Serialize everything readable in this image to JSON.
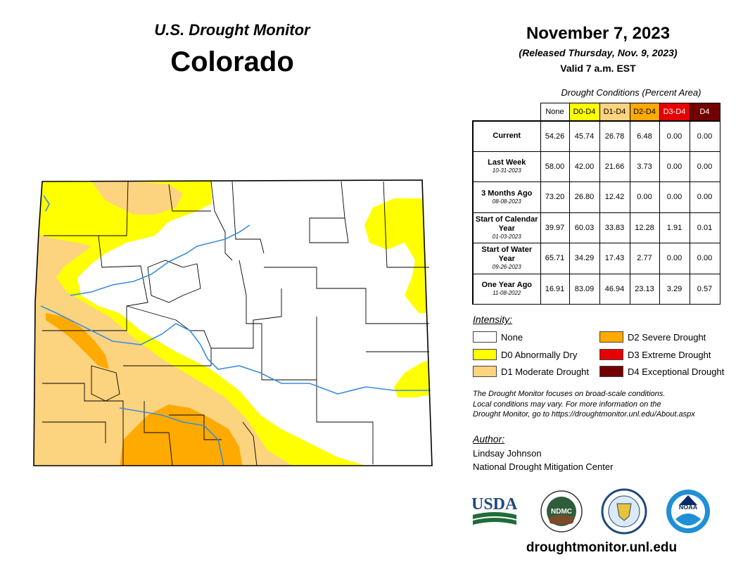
{
  "header": {
    "subtitle": "U.S. Drought Monitor",
    "title": "Colorado",
    "date": "November 7, 2023",
    "released": "(Released Thursday, Nov. 9, 2023)",
    "valid": "Valid 7 a.m. EST"
  },
  "table": {
    "caption": "Drought Conditions (Percent Area)",
    "columns": [
      "None",
      "D0-D4",
      "D1-D4",
      "D2-D4",
      "D3-D4",
      "D4"
    ],
    "rows": [
      {
        "label": "Current",
        "date": "",
        "values": [
          "54.26",
          "45.74",
          "26.78",
          "6.48",
          "0.00",
          "0.00"
        ]
      },
      {
        "label": "Last Week",
        "date": "10-31-2023",
        "values": [
          "58.00",
          "42.00",
          "21.66",
          "3.73",
          "0.00",
          "0.00"
        ]
      },
      {
        "label": "3 Months Ago",
        "date": "08-08-2023",
        "values": [
          "73.20",
          "26.80",
          "12.42",
          "0.00",
          "0.00",
          "0.00"
        ]
      },
      {
        "label": "Start of Calendar Year",
        "date": "01-03-2023",
        "values": [
          "39.97",
          "60.03",
          "33.83",
          "12.28",
          "1.91",
          "0.01"
        ]
      },
      {
        "label": "Start of Water Year",
        "date": "09-26-2023",
        "values": [
          "65.71",
          "34.29",
          "17.43",
          "2.77",
          "0.00",
          "0.00"
        ]
      },
      {
        "label": "One Year Ago",
        "date": "11-08-2022",
        "values": [
          "16.91",
          "83.09",
          "46.94",
          "23.13",
          "3.29",
          "0.57"
        ]
      }
    ]
  },
  "intensity": {
    "title": "Intensity:",
    "items": [
      {
        "label": "None",
        "color": "#ffffff"
      },
      {
        "label": "D0 Abnormally Dry",
        "color": "#ffff00"
      },
      {
        "label": "D1 Moderate Drought",
        "color": "#fcd37f"
      },
      {
        "label": "D2 Severe Drought",
        "color": "#ffaa00"
      },
      {
        "label": "D3 Extreme Drought",
        "color": "#e60000"
      },
      {
        "label": "D4 Exceptional Drought",
        "color": "#730000"
      }
    ]
  },
  "note": {
    "line1": "The Drought Monitor focuses on broad-scale conditions.",
    "line2": "Local conditions may vary. For more information on the",
    "line3": "Drought Monitor, go to https://droughtmonitor.unl.edu/About.aspx"
  },
  "author": {
    "title": "Author:",
    "name": "Lindsay Johnson",
    "org": "National Drought Mitigation Center"
  },
  "logos": {
    "usda": "USDA",
    "ndmc": "NDMC",
    "noaa": "NOAA"
  },
  "website": "droughtmonitor.unl.edu"
}
